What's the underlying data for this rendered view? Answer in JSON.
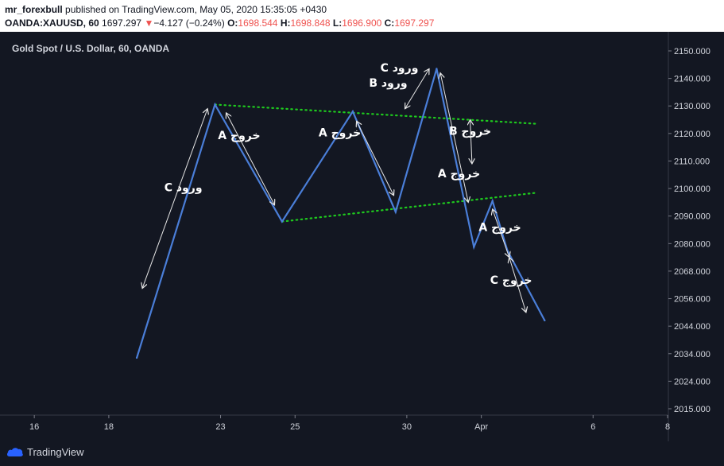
{
  "header": {
    "author": "mr_forexbull",
    "published_text": "published on TradingView.com, May 05, 2020 15:35:05 +0430",
    "symbol_label": "OANDA:XAUUSD, 60",
    "price": "1697.297",
    "change_arrow": "▼",
    "change": "−4.127 (−0.24%)",
    "o_label": "O:",
    "o_value": "1698.544",
    "h_label": "H:",
    "h_value": "1698.848",
    "l_label": "L:",
    "l_value": "1696.900",
    "c_label": "C:",
    "c_value": "1697.297"
  },
  "chart_title": "Gold Spot / U.S. Dollar, 60, OANDA",
  "footer": {
    "brand": "TradingView"
  },
  "colors": {
    "background": "#131722",
    "price_line": "#4a7ed8",
    "trendline": "#1ec91e",
    "arrows": "#e6e6e6",
    "text": "#d1d4dc",
    "negative": "#ef5350"
  },
  "chart_data": {
    "type": "line",
    "title": "Gold Spot / U.S. Dollar, 60, OANDA",
    "xlabel": "",
    "ylabel": "",
    "x_ticks": [
      "16",
      "18",
      "23",
      "25",
      "30",
      "Apr",
      "6",
      "8"
    ],
    "x_tick_pos": [
      0,
      2,
      5,
      7,
      10,
      12,
      15,
      17
    ],
    "xlim": [
      -0.75,
      17.0
    ],
    "y_ticks": [
      2015.0,
      2024.0,
      2034.0,
      2044.0,
      2056.0,
      2068.0,
      2080.0,
      2090.0,
      2100.0,
      2110.0,
      2120.0,
      2130.0,
      2140.0,
      2150.0
    ],
    "y_tick_labels": [
      "2015.000",
      "2024.000",
      "2034.000",
      "2044.000",
      "2056.000",
      "2068.000",
      "2080.000",
      "2090.000",
      "2100.000",
      "2110.000",
      "2120.000",
      "2130.000",
      "2140.000",
      "2150.000"
    ],
    "y_axis_note": "non-linear label spacing as printed",
    "grid": false,
    "series": [
      {
        "x": [
          2.75,
          4.85,
          6.65,
          8.55,
          9.7,
          10.8,
          11.8,
          12.3,
          12.7,
          13.7
        ],
        "y": [
          2032.5,
          2130.5,
          2088.0,
          2128.0,
          2091.5,
          2143.5,
          2078.5,
          2095.5,
          2077.0,
          2046.5
        ]
      }
    ],
    "trendlines": [
      {
        "x": [
          4.85,
          13.5
        ],
        "y": [
          2130.5,
          2123.5
        ]
      },
      {
        "x": [
          6.65,
          13.5
        ],
        "y": [
          2088.0,
          2098.5
        ]
      }
    ],
    "annotations": [
      {
        "text": "C ورود",
        "x": 4.0,
        "y": 2099.0
      },
      {
        "text": "A خروج",
        "x": 5.5,
        "y": 2118.0
      },
      {
        "text": "A خروج",
        "x": 8.2,
        "y": 2119.0
      },
      {
        "text": "C ورود",
        "x": 9.8,
        "y": 2142.5
      },
      {
        "text": "B ورود",
        "x": 9.5,
        "y": 2137.0
      },
      {
        "text": "B خروج",
        "x": 11.7,
        "y": 2119.5
      },
      {
        "text": "A خروج",
        "x": 11.4,
        "y": 2104.0
      },
      {
        "text": "A خروج",
        "x": 12.5,
        "y": 2084.5
      },
      {
        "text": "C خروج",
        "x": 12.8,
        "y": 2062.5
      }
    ],
    "arrows": [
      {
        "from": [
          2.9,
          2060.5
        ],
        "to": [
          4.65,
          2129.0
        ]
      },
      {
        "from": [
          5.15,
          2127.5
        ],
        "to": [
          6.45,
          2094.0
        ]
      },
      {
        "from": [
          8.65,
          2124.5
        ],
        "to": [
          9.65,
          2097.5
        ]
      },
      {
        "from": [
          9.95,
          2129.0
        ],
        "to": [
          10.6,
          2143.5
        ]
      },
      {
        "from": [
          10.9,
          2142.0
        ],
        "to": [
          11.65,
          2095.0
        ]
      },
      {
        "from": [
          11.7,
          2125.0
        ],
        "to": [
          11.75,
          2109.0
        ]
      },
      {
        "from": [
          12.3,
          2092.5
        ],
        "to": [
          12.75,
          2074.0
        ]
      },
      {
        "from": [
          12.75,
          2074.0
        ],
        "to": [
          13.2,
          2050.0
        ]
      }
    ]
  }
}
